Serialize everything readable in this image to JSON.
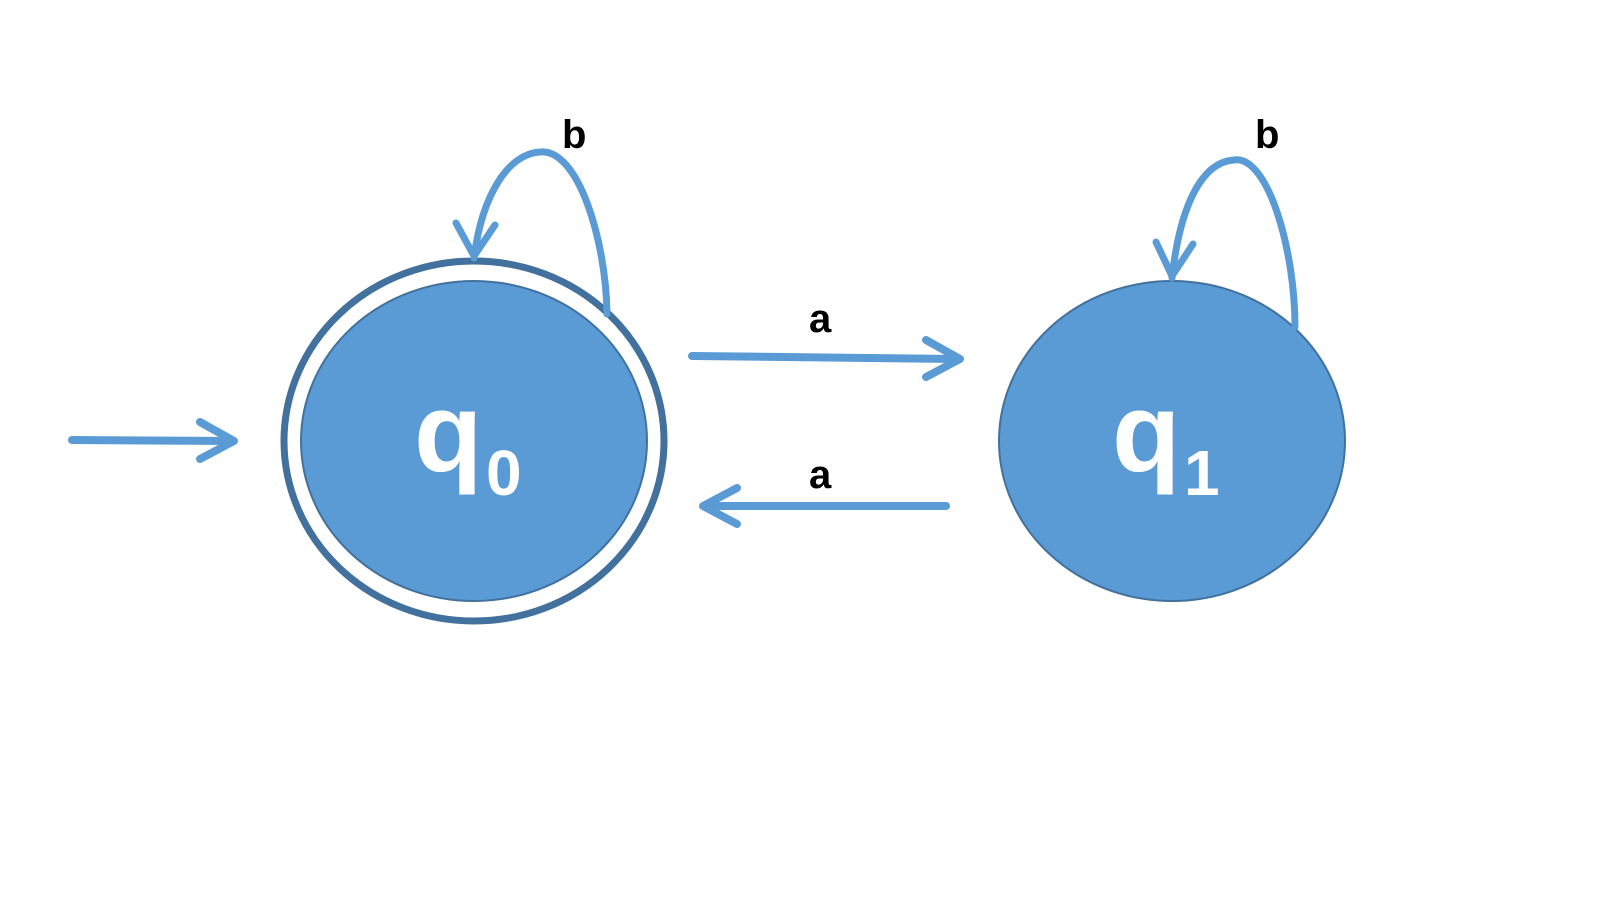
{
  "diagram": {
    "states": [
      {
        "id": "q0",
        "main": "q",
        "sub": "0",
        "accepting": true,
        "start": true
      },
      {
        "id": "q1",
        "main": "q",
        "sub": "1",
        "accepting": false,
        "start": false
      }
    ],
    "transitions": [
      {
        "from": "q0",
        "to": "q0",
        "label": "b"
      },
      {
        "from": "q1",
        "to": "q1",
        "label": "b"
      },
      {
        "from": "q0",
        "to": "q1",
        "label": "a"
      },
      {
        "from": "q1",
        "to": "q0",
        "label": "a"
      }
    ],
    "colors": {
      "fill": "#5b9bd5",
      "outline": "#41719c",
      "arrow": "#5b9bd5",
      "label": "#000000",
      "state_text": "#ffffff"
    }
  }
}
